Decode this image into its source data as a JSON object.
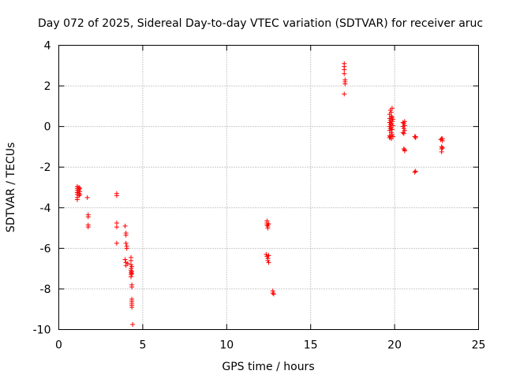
{
  "chart_data": {
    "type": "scatter",
    "title": "Day 072 of 2025, Sidereal Day-to-day VTEC variation (SDTVAR) for receiver aruc",
    "xlabel": "GPS time / hours",
    "ylabel": "SDTVAR / TECUs",
    "xlim": [
      0,
      25
    ],
    "ylim": [
      -10,
      4
    ],
    "xticks": [
      "0",
      "5",
      "10",
      "15",
      "20",
      "25"
    ],
    "yticks": [
      "-10",
      "-8",
      "-6",
      "-4",
      "-2",
      "0",
      "2",
      "4"
    ],
    "grid": true,
    "marker": "+",
    "color": "#ff0000",
    "series": [
      {
        "name": "SDTVAR",
        "points": [
          [
            1.1,
            -2.95
          ],
          [
            1.1,
            -3.05
          ],
          [
            1.1,
            -3.15
          ],
          [
            1.1,
            -3.25
          ],
          [
            1.1,
            -3.35
          ],
          [
            1.1,
            -3.5
          ],
          [
            1.1,
            -3.6
          ],
          [
            1.2,
            -3.0
          ],
          [
            1.2,
            -3.1
          ],
          [
            1.2,
            -3.2
          ],
          [
            1.2,
            -3.3
          ],
          [
            1.2,
            -3.4
          ],
          [
            1.25,
            -3.05
          ],
          [
            1.25,
            -3.2
          ],
          [
            1.25,
            -3.35
          ],
          [
            1.7,
            -3.5
          ],
          [
            1.75,
            -4.35
          ],
          [
            1.75,
            -4.45
          ],
          [
            1.75,
            -4.85
          ],
          [
            1.75,
            -4.95
          ],
          [
            3.45,
            -3.3
          ],
          [
            3.45,
            -3.4
          ],
          [
            3.45,
            -4.75
          ],
          [
            3.45,
            -4.95
          ],
          [
            3.45,
            -5.75
          ],
          [
            3.95,
            -4.9
          ],
          [
            4.0,
            -5.25
          ],
          [
            4.0,
            -5.35
          ],
          [
            4.0,
            -5.75
          ],
          [
            4.05,
            -5.9
          ],
          [
            4.05,
            -6.0
          ],
          [
            3.95,
            -6.55
          ],
          [
            4.0,
            -6.7
          ],
          [
            4.0,
            -6.85
          ],
          [
            4.1,
            -6.75
          ],
          [
            4.3,
            -6.45
          ],
          [
            4.3,
            -6.6
          ],
          [
            4.3,
            -6.8
          ],
          [
            4.3,
            -7.0
          ],
          [
            4.3,
            -7.1
          ],
          [
            4.3,
            -7.2
          ],
          [
            4.3,
            -7.3
          ],
          [
            4.3,
            -7.4
          ],
          [
            4.35,
            -6.9
          ],
          [
            4.35,
            -7.15
          ],
          [
            4.35,
            -7.25
          ],
          [
            4.35,
            -7.8
          ],
          [
            4.35,
            -7.9
          ],
          [
            4.35,
            -8.5
          ],
          [
            4.35,
            -8.6
          ],
          [
            4.35,
            -8.7
          ],
          [
            4.35,
            -8.8
          ],
          [
            4.35,
            -8.9
          ],
          [
            4.4,
            -9.75
          ],
          [
            12.4,
            -4.65
          ],
          [
            12.4,
            -4.75
          ],
          [
            12.4,
            -4.85
          ],
          [
            12.45,
            -4.9
          ],
          [
            12.45,
            -5.0
          ],
          [
            12.5,
            -4.8
          ],
          [
            12.35,
            -6.3
          ],
          [
            12.4,
            -6.4
          ],
          [
            12.45,
            -6.5
          ],
          [
            12.45,
            -6.6
          ],
          [
            12.5,
            -6.35
          ],
          [
            12.5,
            -6.7
          ],
          [
            12.75,
            -8.1
          ],
          [
            12.75,
            -8.2
          ],
          [
            12.8,
            -8.25
          ],
          [
            17.0,
            3.1
          ],
          [
            17.0,
            2.95
          ],
          [
            17.0,
            2.8
          ],
          [
            17.0,
            2.6
          ],
          [
            17.05,
            2.3
          ],
          [
            17.05,
            2.2
          ],
          [
            17.05,
            2.1
          ],
          [
            17.0,
            1.6
          ],
          [
            19.7,
            0.6
          ],
          [
            19.7,
            0.4
          ],
          [
            19.7,
            0.2
          ],
          [
            19.7,
            0.0
          ],
          [
            19.7,
            -0.2
          ],
          [
            19.7,
            -0.45
          ],
          [
            19.7,
            -0.55
          ],
          [
            19.75,
            0.8
          ],
          [
            19.75,
            0.3
          ],
          [
            19.75,
            0.1
          ],
          [
            19.75,
            -0.1
          ],
          [
            19.75,
            -0.5
          ],
          [
            19.8,
            0.7
          ],
          [
            19.8,
            0.5
          ],
          [
            19.8,
            0.15
          ],
          [
            19.8,
            -0.05
          ],
          [
            19.8,
            -0.3
          ],
          [
            19.8,
            -0.6
          ],
          [
            19.85,
            0.9
          ],
          [
            19.85,
            0.45
          ],
          [
            19.85,
            0.25
          ],
          [
            19.85,
            -0.15
          ],
          [
            19.85,
            -0.4
          ],
          [
            19.9,
            0.35
          ],
          [
            19.9,
            0.05
          ],
          [
            19.9,
            -0.5
          ],
          [
            20.5,
            0.2
          ],
          [
            20.5,
            0.0
          ],
          [
            20.5,
            -0.3
          ],
          [
            20.55,
            0.15
          ],
          [
            20.55,
            -0.1
          ],
          [
            20.55,
            -0.35
          ],
          [
            20.6,
            0.25
          ],
          [
            20.6,
            0.05
          ],
          [
            20.6,
            -0.2
          ],
          [
            20.55,
            -1.1
          ],
          [
            20.6,
            -1.15
          ],
          [
            20.6,
            -1.2
          ],
          [
            21.2,
            -0.5
          ],
          [
            21.25,
            -0.55
          ],
          [
            21.25,
            -0.5
          ],
          [
            21.2,
            -2.25
          ],
          [
            21.25,
            -2.2
          ],
          [
            22.75,
            -0.65
          ],
          [
            22.8,
            -0.6
          ],
          [
            22.85,
            -0.7
          ],
          [
            22.85,
            -0.6
          ],
          [
            22.8,
            -1.0
          ],
          [
            22.8,
            -1.1
          ],
          [
            22.8,
            -1.25
          ],
          [
            22.85,
            -1.05
          ]
        ]
      }
    ]
  }
}
